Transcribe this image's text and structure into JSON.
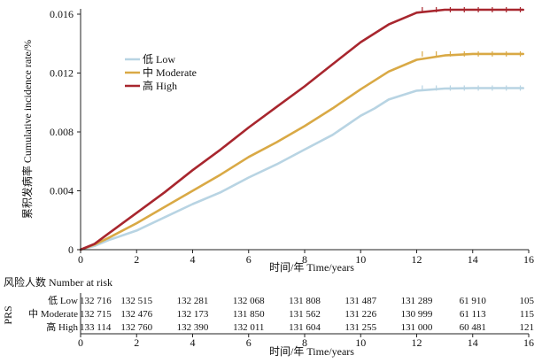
{
  "chart_data": [
    {
      "type": "line",
      "title": "",
      "ylabel": "累积发病率 Cumulative incidence rate/%",
      "xlabel": "时间/年 Time/years",
      "xlim": [
        0,
        16
      ],
      "ylim": [
        0,
        0.016
      ],
      "x_ticks": [
        "0",
        "2",
        "4",
        "6",
        "8",
        "10",
        "12",
        "14",
        "16"
      ],
      "y_ticks": [
        "0",
        "0.004",
        "0.008",
        "0.012",
        "0.016"
      ],
      "legend_position": "upper-left",
      "series": [
        {
          "name": "低 Low",
          "color": "#b8d4e3",
          "x": [
            0,
            0.5,
            1,
            2,
            3,
            4,
            5,
            6,
            7,
            8,
            9,
            10,
            10.5,
            11,
            12,
            13,
            14,
            15,
            15.8
          ],
          "values": [
            0,
            0.00025,
            0.00065,
            0.0013,
            0.0022,
            0.0031,
            0.0039,
            0.0049,
            0.0058,
            0.0068,
            0.0078,
            0.0091,
            0.0096,
            0.0102,
            0.0108,
            0.01095,
            0.01098,
            0.01098,
            0.01098
          ]
        },
        {
          "name": "中 Moderate",
          "color": "#d9a945",
          "x": [
            0,
            0.5,
            1,
            2,
            3,
            4,
            5,
            6,
            7,
            8,
            9,
            10,
            11,
            12,
            13,
            14,
            15,
            15.8
          ],
          "values": [
            0,
            0.00035,
            0.0008,
            0.0018,
            0.0029,
            0.004,
            0.0051,
            0.0063,
            0.0073,
            0.0084,
            0.0096,
            0.0109,
            0.0121,
            0.0129,
            0.0132,
            0.0133,
            0.0133,
            0.0133
          ]
        },
        {
          "name": "高 High",
          "color": "#a8262e",
          "x": [
            0,
            0.5,
            1,
            2,
            3,
            4,
            5,
            6,
            7,
            8,
            9,
            10,
            11,
            12,
            13,
            14,
            15,
            15.8
          ],
          "values": [
            0,
            0.0004,
            0.0011,
            0.0025,
            0.0039,
            0.0054,
            0.0068,
            0.0083,
            0.0097,
            0.0111,
            0.0126,
            0.0141,
            0.0153,
            0.0161,
            0.0163,
            0.0163,
            0.0163,
            0.0163
          ]
        }
      ]
    },
    {
      "type": "table",
      "title": "风险人数 Number at risk",
      "row_group_label": "PRS",
      "xlabel": "时间/年 Time/years",
      "x_ticks": [
        "0",
        "2",
        "4",
        "6",
        "8",
        "10",
        "12",
        "14",
        "16"
      ],
      "rows": [
        {
          "label": "低 Low",
          "values": [
            "132 716",
            "132 515",
            "132 281",
            "132 068",
            "131 808",
            "131 487",
            "131 289",
            "61 910",
            "105"
          ]
        },
        {
          "label": "中 Moderate",
          "values": [
            "132 715",
            "132 476",
            "132 173",
            "131 850",
            "131 562",
            "131 226",
            "130 999",
            "61 113",
            "115"
          ]
        },
        {
          "label": "高 High",
          "values": [
            "133 114",
            "132 760",
            "132 390",
            "132 011",
            "131 604",
            "131 255",
            "131 000",
            "60 481",
            "121"
          ]
        }
      ]
    }
  ]
}
